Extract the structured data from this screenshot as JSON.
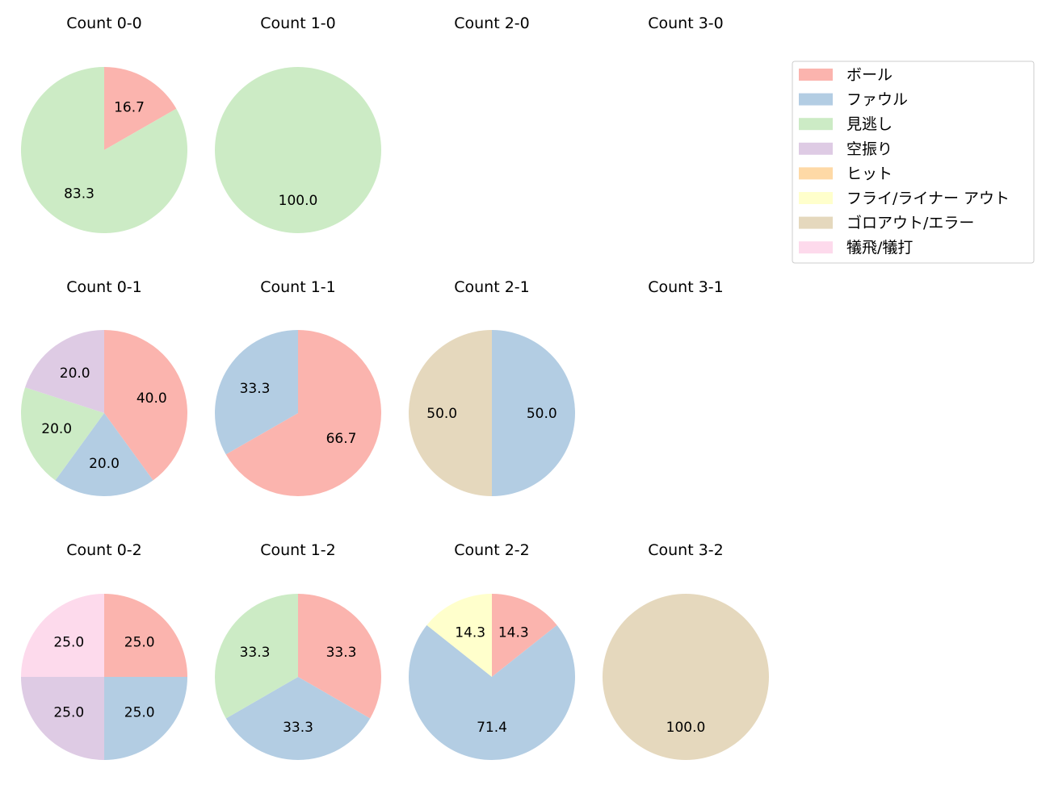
{
  "chart_data": {
    "type": "pie",
    "categories": [
      "ボール",
      "ファウル",
      "見逃し",
      "空振り",
      "ヒット",
      "フライ/ライナー アウト",
      "ゴロアウト/エラー",
      "犠飛/犠打"
    ],
    "colors": [
      "#fbb4ae",
      "#b3cde3",
      "#ccebc5",
      "#decbe4",
      "#fed9a6",
      "#ffffcc",
      "#e5d8bd",
      "#fddaec"
    ],
    "legend_position": "top-right",
    "charts": [
      {
        "title": "Count 0-0",
        "values": [
          16.7,
          0,
          83.3,
          0,
          0,
          0,
          0,
          0
        ],
        "labels": [
          "16.7",
          "",
          "83.3",
          "",
          "",
          "",
          "",
          ""
        ]
      },
      {
        "title": "Count 1-0",
        "values": [
          0,
          0,
          100,
          0,
          0,
          0,
          0,
          0
        ],
        "labels": [
          "",
          "",
          "100.0",
          "",
          "",
          "",
          "",
          ""
        ]
      },
      {
        "title": "Count 2-0",
        "values": [],
        "labels": []
      },
      {
        "title": "Count 3-0",
        "values": [],
        "labels": []
      },
      {
        "title": "Count 0-1",
        "values": [
          40,
          20,
          20,
          20,
          0,
          0,
          0,
          0
        ],
        "labels": [
          "40.0",
          "20.0",
          "20.0",
          "20.0",
          "",
          "",
          "",
          ""
        ]
      },
      {
        "title": "Count 1-1",
        "values": [
          66.7,
          33.3,
          0,
          0,
          0,
          0,
          0,
          0
        ],
        "labels": [
          "66.7",
          "33.3",
          "",
          "",
          "",
          "",
          "",
          ""
        ]
      },
      {
        "title": "Count 2-1",
        "values": [
          0,
          50,
          0,
          0,
          0,
          0,
          50,
          0
        ],
        "labels": [
          "",
          "50.0",
          "",
          "",
          "",
          "",
          "50.0",
          ""
        ]
      },
      {
        "title": "Count 3-1",
        "values": [],
        "labels": []
      },
      {
        "title": "Count 0-2",
        "values": [
          25,
          25,
          0,
          25,
          0,
          0,
          0,
          25
        ],
        "labels": [
          "25.0",
          "25.0",
          "",
          "25.0",
          "",
          "",
          "",
          "25.0"
        ]
      },
      {
        "title": "Count 1-2",
        "values": [
          33.3,
          33.3,
          33.3,
          0,
          0,
          0,
          0,
          0
        ],
        "labels": [
          "33.3",
          "33.3",
          "33.3",
          "",
          "",
          "",
          "",
          ""
        ]
      },
      {
        "title": "Count 2-2",
        "values": [
          14.3,
          71.4,
          0,
          0,
          0,
          14.3,
          0,
          0
        ],
        "labels": [
          "14.3",
          "71.4",
          "",
          "",
          "",
          "14.3",
          "",
          ""
        ]
      },
      {
        "title": "Count 3-2",
        "values": [
          0,
          0,
          0,
          0,
          0,
          0,
          100,
          0
        ],
        "labels": [
          "",
          "",
          "",
          "",
          "",
          "",
          "100.0",
          ""
        ]
      }
    ]
  }
}
